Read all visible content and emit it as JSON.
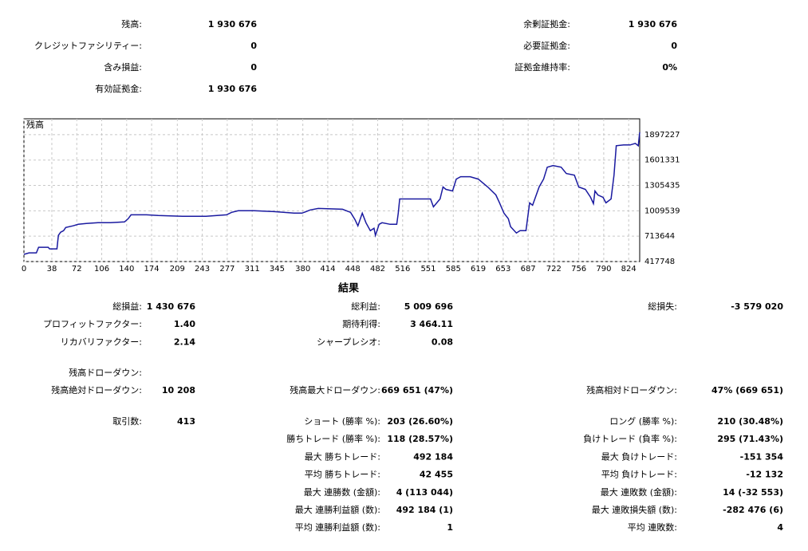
{
  "summary": {
    "left": [
      {
        "label": "残高:",
        "value": "1 930 676"
      },
      {
        "label": "クレジットファシリティー:",
        "value": "0"
      },
      {
        "label": "含み損益:",
        "value": "0"
      },
      {
        "label": "有効証拠金:",
        "value": "1 930 676"
      }
    ],
    "right": [
      {
        "label": "余剰証拠金:",
        "value": "1 930 676"
      },
      {
        "label": "必要証拠金:",
        "value": "0"
      },
      {
        "label": "証拠金維持率:",
        "value": "0%"
      }
    ]
  },
  "chart_data": {
    "type": "line",
    "title": "残高",
    "color": "#1a1aa0",
    "grid": true,
    "xlim": [
      0,
      839
    ],
    "xticks": [
      0,
      38,
      72,
      106,
      140,
      174,
      209,
      243,
      277,
      311,
      345,
      380,
      414,
      448,
      482,
      516,
      551,
      585,
      619,
      653,
      687,
      722,
      756,
      790,
      824
    ],
    "ylim": [
      417748,
      2082162
    ],
    "yticks": [
      417748,
      713644,
      1009539,
      1305435,
      1601331,
      1897227
    ],
    "x": [
      0,
      7,
      17,
      20,
      33,
      35,
      45,
      47,
      50,
      54,
      57,
      67,
      74,
      85,
      101,
      118,
      137,
      142,
      146,
      167,
      183,
      216,
      248,
      276,
      283,
      292,
      314,
      341,
      368,
      379,
      390,
      401,
      434,
      445,
      451,
      455,
      461,
      466,
      472,
      477,
      479,
      484,
      488,
      499,
      508,
      510,
      512,
      532,
      554,
      558,
      567,
      571,
      575,
      584,
      589,
      595,
      608,
      619,
      632,
      643,
      648,
      654,
      660,
      663,
      671,
      676,
      684,
      689,
      693,
      702,
      708,
      713,
      721,
      732,
      739,
      750,
      756,
      765,
      772,
      776,
      778,
      782,
      789,
      793,
      800,
      804,
      807,
      817,
      826,
      833,
      837,
      839
    ],
    "series": [
      {
        "name": "残高",
        "color": "#1a1aa0",
        "values": [
          501000,
          519000,
          519000,
          584000,
          584000,
          566000,
          566000,
          723000,
          760000,
          778000,
          815000,
          834000,
          852000,
          862000,
          871000,
          871000,
          880000,
          917000,
          963000,
          963000,
          954000,
          945000,
          945000,
          963000,
          991000,
          1010000,
          1010000,
          1000000,
          982000,
          982000,
          1019000,
          1037000,
          1028000,
          991000,
          908000,
          834000,
          982000,
          871000,
          778000,
          806000,
          723000,
          852000,
          871000,
          852000,
          852000,
          982000,
          1148000,
          1148000,
          1148000,
          1056000,
          1148000,
          1287000,
          1259000,
          1241000,
          1379000,
          1407000,
          1407000,
          1379000,
          1287000,
          1194000,
          1102000,
          982000,
          917000,
          825000,
          751000,
          778000,
          778000,
          1102000,
          1074000,
          1287000,
          1379000,
          1518000,
          1537000,
          1518000,
          1444000,
          1426000,
          1287000,
          1259000,
          1167000,
          1093000,
          1241000,
          1194000,
          1167000,
          1102000,
          1148000,
          1426000,
          1768000,
          1777000,
          1777000,
          1796000,
          1768000,
          1925000
        ]
      }
    ]
  },
  "results": {
    "title": "結果",
    "groups": [
      [
        {
          "left": {
            "label": "総損益:",
            "value": "1 430 676"
          },
          "middle": {
            "label": "総利益:",
            "value": "5 009 696"
          },
          "right": {
            "label": "総損失:",
            "value": "-3 579 020"
          }
        },
        {
          "left": {
            "label": "プロフィットファクター:",
            "value": "1.40"
          },
          "middle": {
            "label": "期待利得:",
            "value": "3 464.11"
          }
        },
        {
          "left": {
            "label": "リカバリファクター:",
            "value": "2.14"
          },
          "middle": {
            "label": "シャープレシオ:",
            "value": "0.08"
          }
        }
      ],
      [
        {
          "left": {
            "label": "残高ドローダウン:"
          }
        },
        {
          "left": {
            "label": "残高絶対ドローダウン:",
            "value": "10 208"
          },
          "middle": {
            "label": "残高最大ドローダウン:",
            "value": "669 651 (47%)"
          },
          "right": {
            "label": "残高相対ドローダウン:",
            "value": "47% (669 651)"
          }
        }
      ],
      [
        {
          "left": {
            "label": "取引数:",
            "value": "413"
          },
          "middle": {
            "label": "ショート (勝率 %):",
            "value": "203 (26.60%)"
          },
          "right": {
            "label": "ロング (勝率 %):",
            "value": "210 (30.48%)"
          }
        },
        {
          "middle": {
            "label": "勝ちトレード (勝率 %):",
            "value": "118 (28.57%)"
          },
          "right": {
            "label": "負けトレード (負率 %):",
            "value": "295 (71.43%)"
          }
        },
        {
          "middle": {
            "label": "最大 勝ちトレード:",
            "value": "492 184"
          },
          "right": {
            "label": "最大 負けトレード:",
            "value": "-151 354"
          }
        },
        {
          "middle": {
            "label": "平均 勝ちトレード:",
            "value": "42 455"
          },
          "right": {
            "label": "平均 負けトレード:",
            "value": "-12 132"
          }
        },
        {
          "middle": {
            "label": "最大 連勝数 (金額):",
            "value": "4 (113 044)"
          },
          "right": {
            "label": "最大 連敗数 (金額):",
            "value": "14 (-32 553)"
          }
        },
        {
          "middle": {
            "label": "最大 連勝利益額 (数):",
            "value": "492 184 (1)"
          },
          "right": {
            "label": "最大 連敗損失額 (数):",
            "value": "-282 476 (6)"
          }
        },
        {
          "middle": {
            "label": "平均 連勝利益額 (数):",
            "value": "1"
          },
          "right": {
            "label": "平均 連敗数:",
            "value": "4"
          }
        }
      ]
    ]
  }
}
